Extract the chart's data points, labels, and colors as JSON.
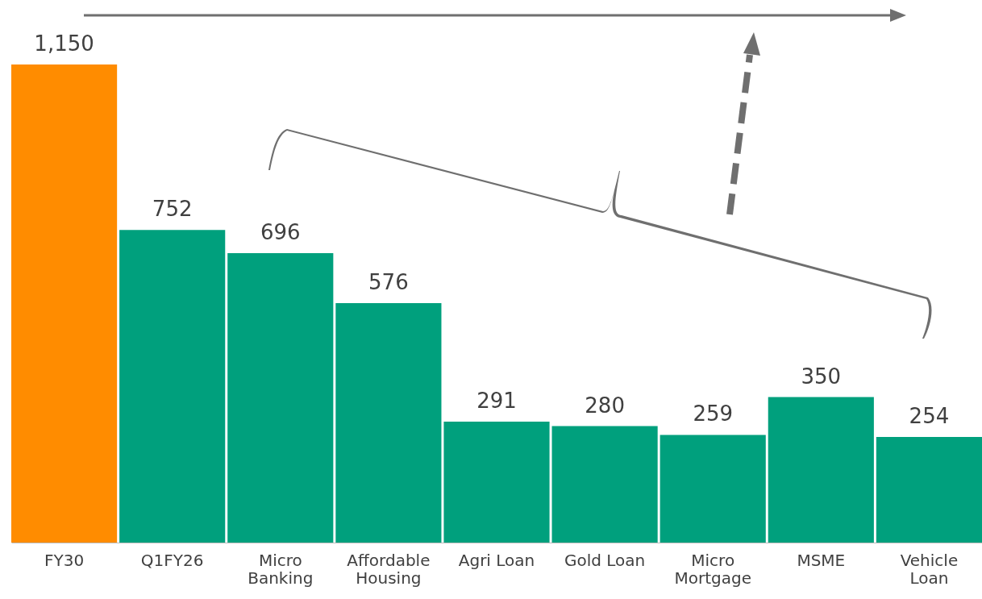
{
  "chart_data": {
    "type": "bar",
    "categories": [
      "FY30",
      "Q1FY26",
      "Micro Banking",
      "Affordable Housing",
      "Agri Loan",
      "Gold Loan",
      "Micro Mortgage",
      "MSME",
      "Vehicle Loan"
    ],
    "values": [
      1150,
      752,
      696,
      576,
      291,
      280,
      259,
      350,
      254
    ],
    "colors": [
      "#ff8c00",
      "#00a07d",
      "#00a07d",
      "#00a07d",
      "#00a07d",
      "#00a07d",
      "#00a07d",
      "#00a07d",
      "#00a07d"
    ],
    "value_labels": [
      "1,150",
      "752",
      "696",
      "576",
      "291",
      "280",
      "259",
      "350",
      "254"
    ]
  }
}
